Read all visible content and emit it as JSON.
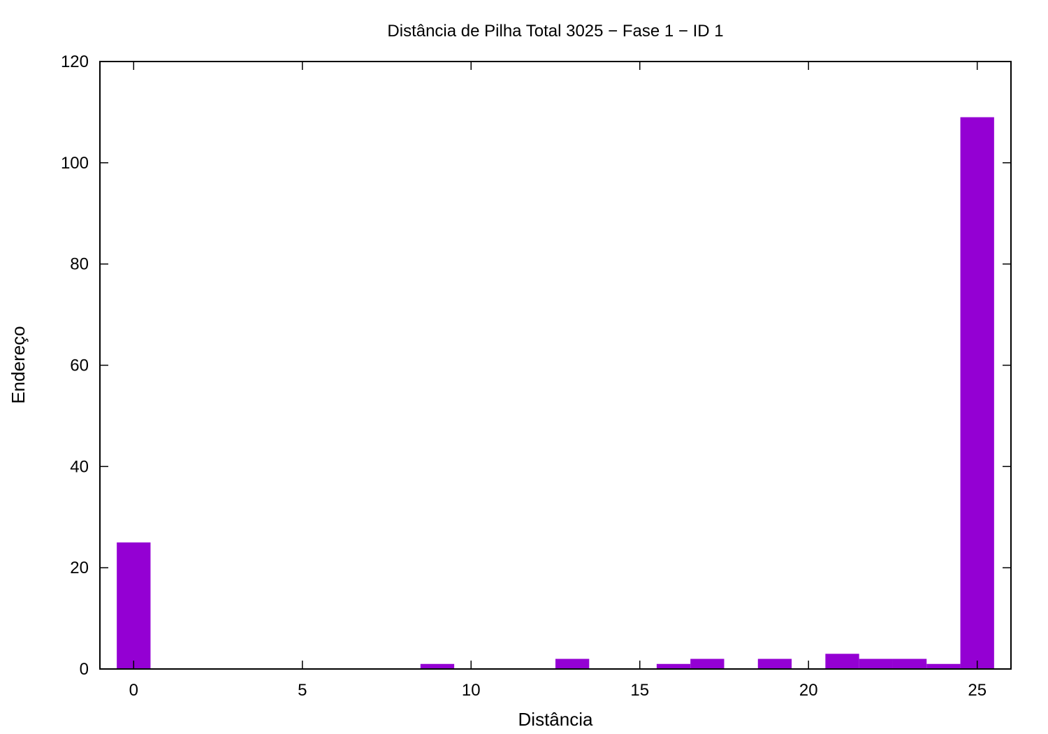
{
  "chart_data": {
    "type": "bar",
    "title": "Distância de Pilha Total 3025 − Fase  1 − ID 1",
    "xlabel": "Distância",
    "ylabel": "Endereço",
    "xlim": [
      -1,
      26
    ],
    "ylim": [
      0,
      120
    ],
    "xticks": [
      0,
      5,
      10,
      15,
      20,
      25
    ],
    "yticks": [
      0,
      20,
      40,
      60,
      80,
      100,
      120
    ],
    "grid": false,
    "bar_color": "#9400d3",
    "bars": [
      {
        "x": 0,
        "value": 25
      },
      {
        "x": 9,
        "value": 1
      },
      {
        "x": 13,
        "value": 2
      },
      {
        "x": 16,
        "value": 1
      },
      {
        "x": 17,
        "value": 2
      },
      {
        "x": 19,
        "value": 2
      },
      {
        "x": 21,
        "value": 3
      },
      {
        "x": 22,
        "value": 2
      },
      {
        "x": 23,
        "value": 2
      },
      {
        "x": 24,
        "value": 1
      },
      {
        "x": 25,
        "value": 109
      }
    ]
  }
}
